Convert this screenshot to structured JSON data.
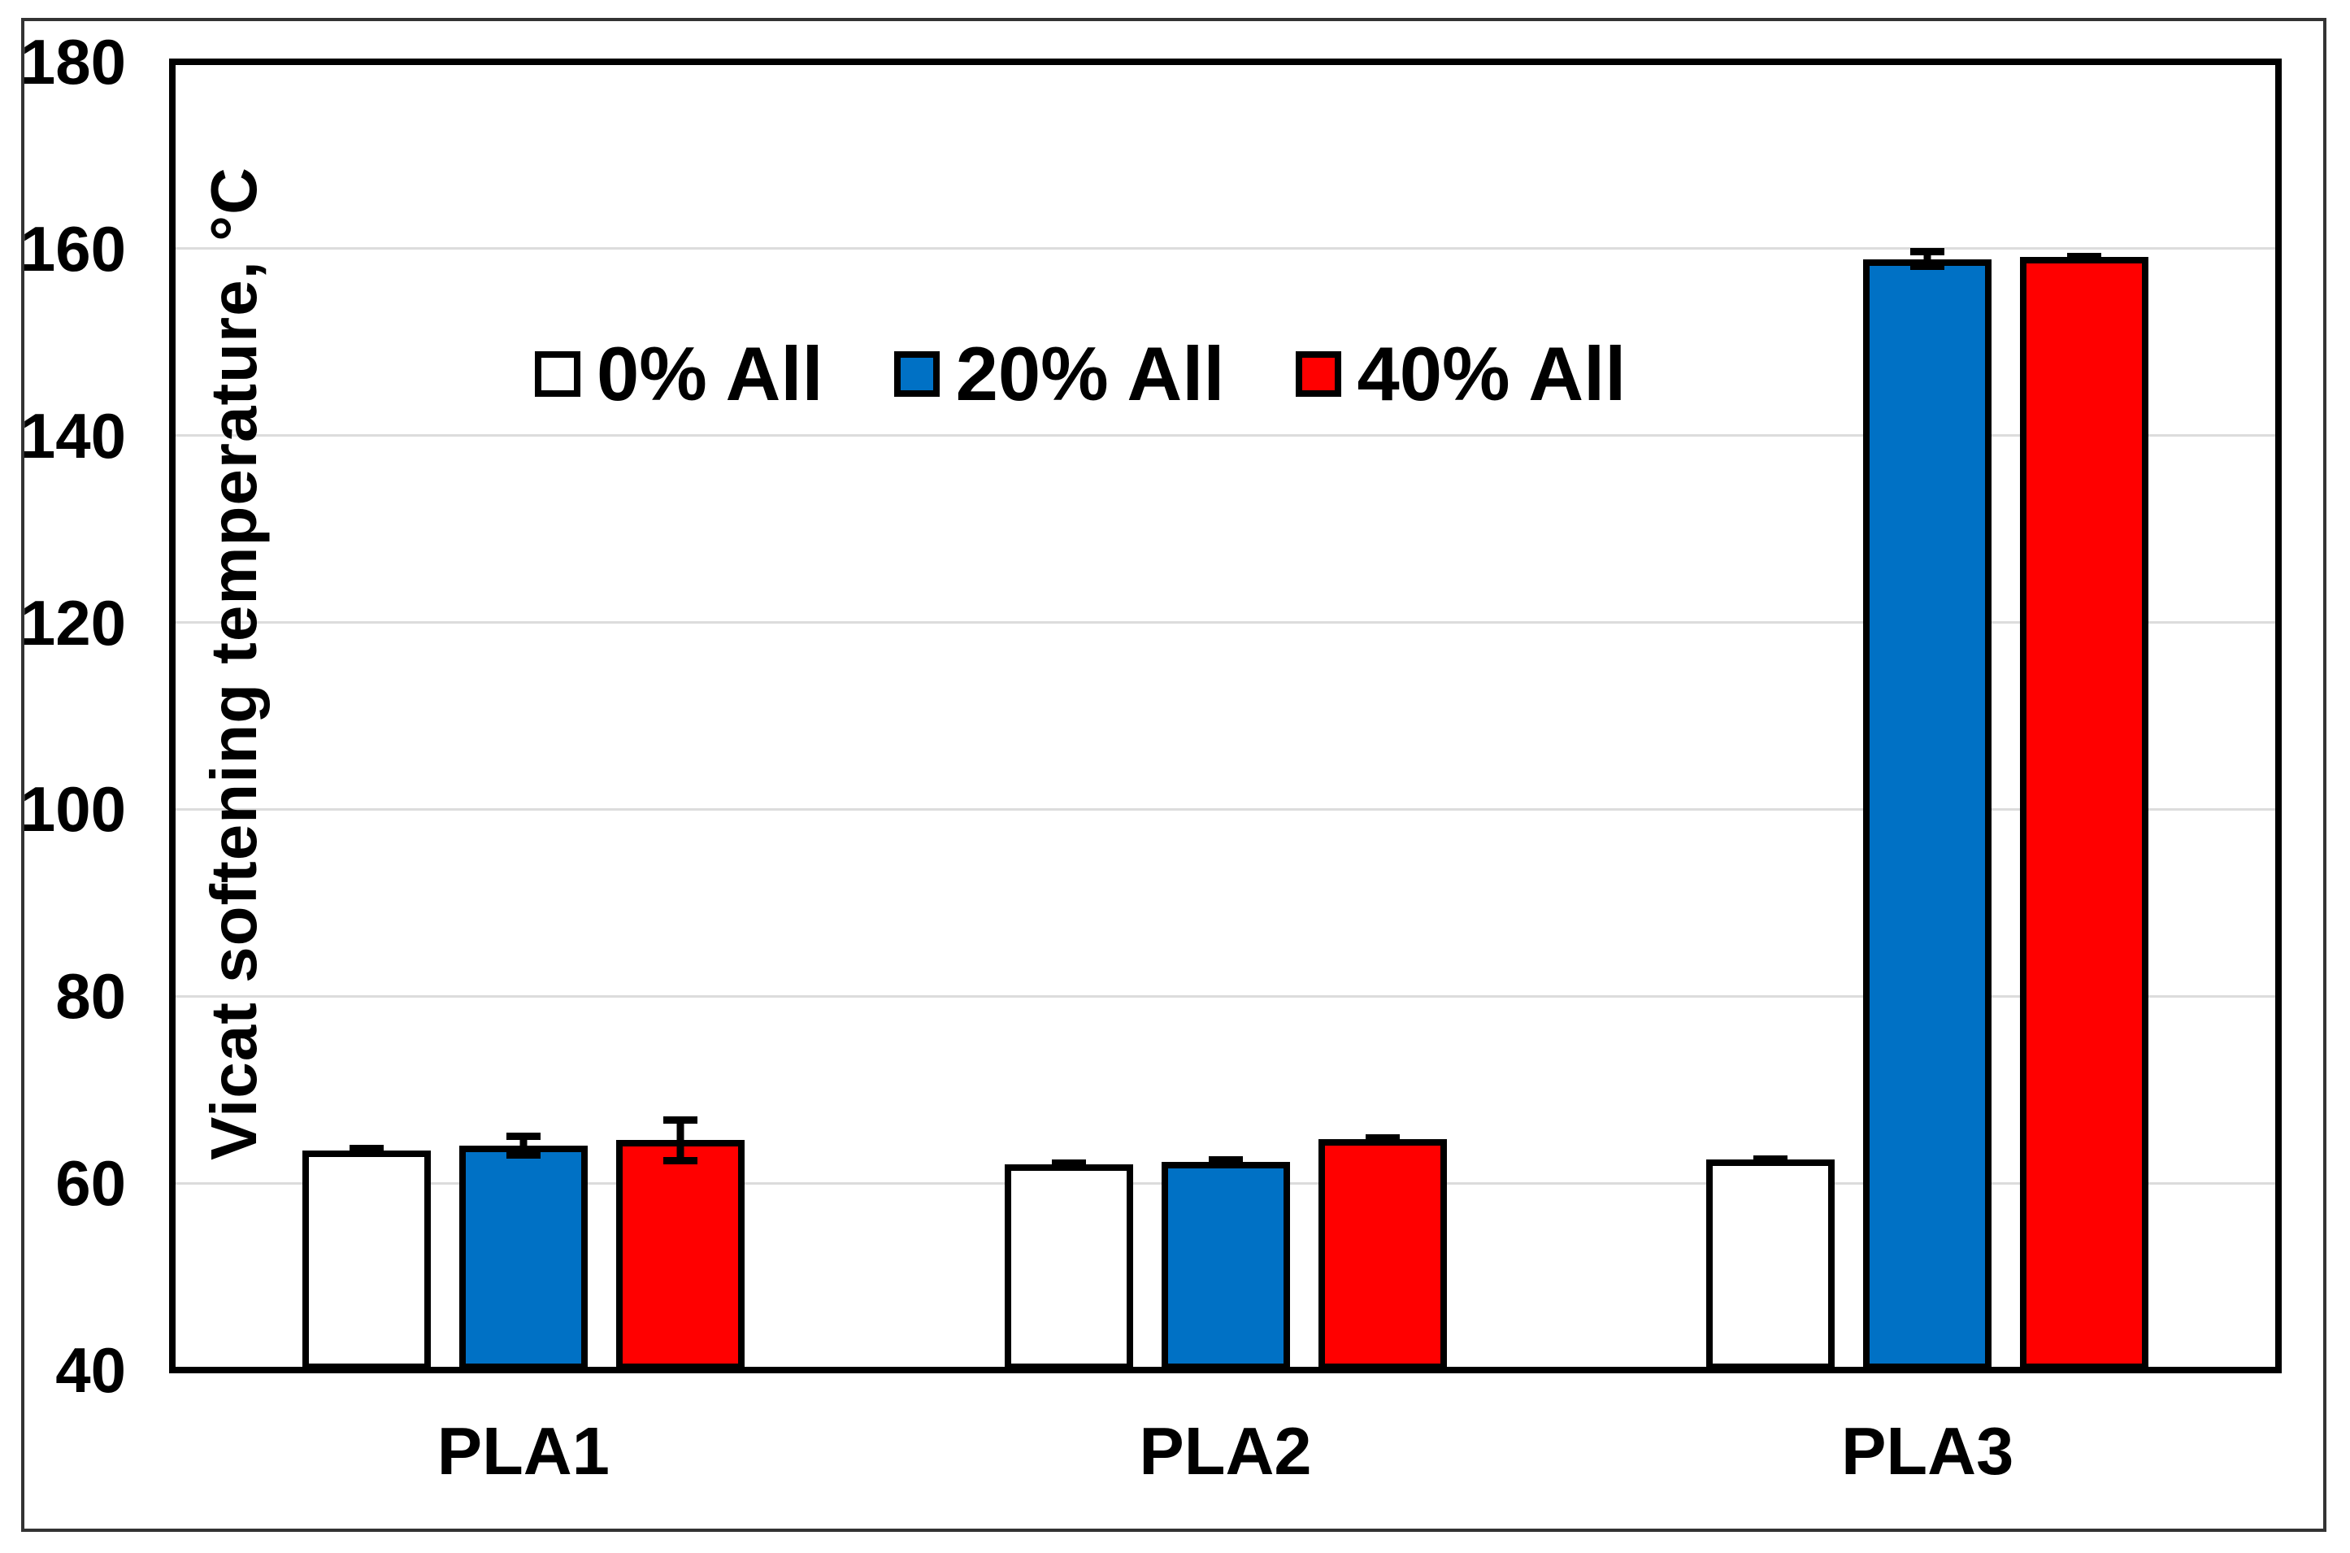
{
  "chart_data": {
    "type": "bar",
    "title": "",
    "categories": [
      "PLA1",
      "PLA2",
      "PLA3"
    ],
    "series": [
      {
        "name": "0% All",
        "color": "#ffffff",
        "values": [
          63.5,
          62.0,
          62.5
        ],
        "errors": [
          0.4,
          0.4,
          0.3
        ]
      },
      {
        "name": "20% All",
        "color": "#0071c5",
        "values": [
          64.0,
          62.3,
          158.9
        ],
        "errors": [
          1.2,
          0.4,
          1.0
        ]
      },
      {
        "name": "40% All",
        "color": "#ff0000",
        "values": [
          64.6,
          64.7,
          159.1
        ],
        "errors": [
          2.4,
          0.4,
          0.3
        ]
      }
    ],
    "xlabel": "",
    "ylabel": "Vicat softening temperature, °C",
    "ylim": [
      40,
      180
    ],
    "yticks": [
      180,
      160,
      140,
      120,
      100,
      80,
      60,
      40
    ],
    "grid": "horizontal",
    "legend_position": "inside-top-center",
    "colors": {
      "background": "#ffffff",
      "figure_border": "#333333",
      "plot_border": "#000000",
      "bar_border": "#000000",
      "gridline": "#dcdcdc",
      "error_bar": "#000000",
      "text": "#000000"
    }
  }
}
